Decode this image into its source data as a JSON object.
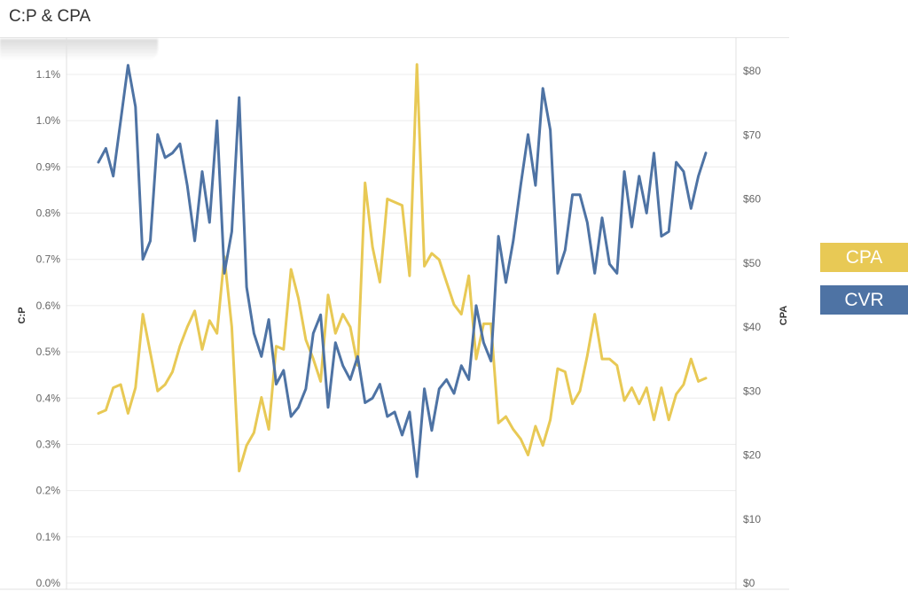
{
  "title": "C:P & CPA",
  "legend": {
    "items": [
      {
        "label": "CPA",
        "color": "#E8C955"
      },
      {
        "label": "CVR",
        "color": "#4E73A4"
      }
    ]
  },
  "chart_data": {
    "type": "line",
    "left_axis": {
      "label": "C:P",
      "range": [
        0,
        1.15
      ],
      "ticks": [
        0.0,
        0.1,
        0.2,
        0.3,
        0.4,
        0.5,
        0.6,
        0.7,
        0.8,
        0.9,
        1.0,
        1.1
      ],
      "tick_labels": [
        "0.0%",
        "0.1%",
        "0.2%",
        "0.3%",
        "0.4%",
        "0.5%",
        "0.6%",
        "0.7%",
        "0.8%",
        "0.9%",
        "1.0%",
        "1.1%"
      ]
    },
    "right_axis": {
      "label": "CPA",
      "range": [
        0,
        85
      ],
      "ticks": [
        0,
        10,
        20,
        30,
        40,
        50,
        60,
        70,
        80
      ],
      "tick_labels": [
        "$0",
        "$10",
        "$20",
        "$30",
        "$40",
        "$50",
        "$60",
        "$70",
        "$80"
      ]
    },
    "grid": true,
    "legend_position": "right",
    "series": [
      {
        "name": "CVR",
        "axis": "left",
        "color": "#4E73A4",
        "values": [
          0.91,
          0.94,
          0.88,
          1.0,
          1.12,
          1.03,
          0.7,
          0.74,
          0.97,
          0.92,
          0.93,
          0.95,
          0.86,
          0.74,
          0.89,
          0.78,
          1.0,
          0.67,
          0.76,
          1.05,
          0.64,
          0.54,
          0.49,
          0.57,
          0.43,
          0.46,
          0.36,
          0.38,
          0.42,
          0.54,
          0.58,
          0.38,
          0.52,
          0.47,
          0.44,
          0.49,
          0.39,
          0.4,
          0.43,
          0.36,
          0.37,
          0.32,
          0.37,
          0.23,
          0.42,
          0.33,
          0.42,
          0.44,
          0.41,
          0.47,
          0.44,
          0.6,
          0.52,
          0.48,
          0.75,
          0.65,
          0.74,
          0.86,
          0.97,
          0.86,
          1.07,
          0.98,
          0.67,
          0.72,
          0.84,
          0.84,
          0.78,
          0.67,
          0.79,
          0.69,
          0.67,
          0.89,
          0.77,
          0.88,
          0.8,
          0.93,
          0.75,
          0.76,
          0.91,
          0.89,
          0.81,
          0.88,
          0.93
        ]
      },
      {
        "name": "CPA",
        "axis": "right",
        "color": "#E8C955",
        "values": [
          26.5,
          27,
          30.5,
          31,
          26.5,
          30.5,
          42,
          36,
          30,
          31,
          33,
          37,
          40,
          42.5,
          36.5,
          41,
          39,
          51,
          40,
          17.5,
          21.5,
          23.5,
          29,
          24,
          37,
          36.5,
          49,
          44.5,
          38,
          35,
          31.5,
          45,
          39,
          42,
          40,
          34,
          62.5,
          52.5,
          47,
          60,
          59.5,
          59,
          48,
          81,
          49.5,
          51.5,
          50.5,
          47,
          43.5,
          42,
          48,
          35,
          40.5,
          40.5,
          25,
          26,
          24,
          22.5,
          20,
          24.5,
          21.5,
          25.5,
          33.5,
          33,
          28,
          30,
          35.5,
          42,
          35,
          35,
          34,
          28.5,
          30.5,
          28,
          30.5,
          25.5,
          30.5,
          25.5,
          29.5,
          31,
          35,
          31.5,
          32
        ]
      }
    ]
  }
}
